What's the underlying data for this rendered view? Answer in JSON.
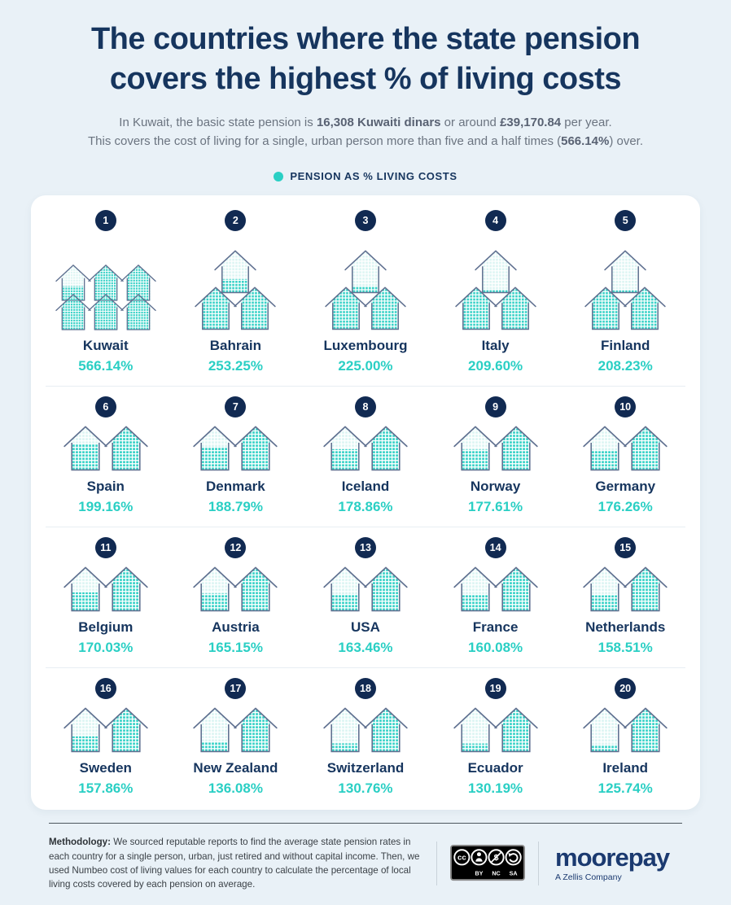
{
  "header": {
    "title_line1": "The countries where the state pension",
    "title_line2": "covers the highest % of living costs",
    "subtitle": {
      "l1a": "In Kuwait, the basic state pension is ",
      "l1b": "16,308 Kuwaiti dinars",
      "l1c": " or around ",
      "l1d": "£39,170.84",
      "l1e": " per year.",
      "l2a": "This covers the cost of living for a single, urban person more than five and a half times (",
      "l2b": "566.14%",
      "l2c": ") over."
    },
    "legend_label": "PENSION AS % LIVING COSTS"
  },
  "countries": [
    {
      "rank": "1",
      "name": "Kuwait",
      "value": "566.14%",
      "pct": 566.14
    },
    {
      "rank": "2",
      "name": "Bahrain",
      "value": "253.25%",
      "pct": 253.25
    },
    {
      "rank": "3",
      "name": "Luxembourg",
      "value": "225.00%",
      "pct": 225.0
    },
    {
      "rank": "4",
      "name": "Italy",
      "value": "209.60%",
      "pct": 209.6
    },
    {
      "rank": "5",
      "name": "Finland",
      "value": "208.23%",
      "pct": 208.23
    },
    {
      "rank": "6",
      "name": "Spain",
      "value": "199.16%",
      "pct": 199.16
    },
    {
      "rank": "7",
      "name": "Denmark",
      "value": "188.79%",
      "pct": 188.79
    },
    {
      "rank": "8",
      "name": "Iceland",
      "value": "178.86%",
      "pct": 178.86
    },
    {
      "rank": "9",
      "name": "Norway",
      "value": "177.61%",
      "pct": 177.61
    },
    {
      "rank": "10",
      "name": "Germany",
      "value": "176.26%",
      "pct": 176.26
    },
    {
      "rank": "11",
      "name": "Belgium",
      "value": "170.03%",
      "pct": 170.03
    },
    {
      "rank": "12",
      "name": "Austria",
      "value": "165.15%",
      "pct": 165.15
    },
    {
      "rank": "13",
      "name": "USA",
      "value": "163.46%",
      "pct": 163.46
    },
    {
      "rank": "14",
      "name": "France",
      "value": "160.08%",
      "pct": 160.08
    },
    {
      "rank": "15",
      "name": "Netherlands",
      "value": "158.51%",
      "pct": 158.51
    },
    {
      "rank": "16",
      "name": "Sweden",
      "value": "157.86%",
      "pct": 157.86
    },
    {
      "rank": "17",
      "name": "New Zealand",
      "value": "136.08%",
      "pct": 136.08
    },
    {
      "rank": "18",
      "name": "Switzerland",
      "value": "130.76%",
      "pct": 130.76
    },
    {
      "rank": "19",
      "name": "Ecuador",
      "value": "130.19%",
      "pct": 130.19
    },
    {
      "rank": "20",
      "name": "Ireland",
      "value": "125.74%",
      "pct": 125.74
    }
  ],
  "footer": {
    "methodology_bold": "Methodology:",
    "methodology_text": " We sourced reputable reports to find the average state pension rates in each country for a single person, urban, just retired and without capital income. Then, we used Numbeo cost of living values for each country to calculate the percentage of local living costs covered by each pension on average.",
    "cc_symbol": "cc",
    "cc_nc_symbol": "$",
    "cc_by": "BY",
    "cc_nc": "NC",
    "cc_sa": "SA",
    "logo_text": "moorepay",
    "logo_subtext": "A Zellis Company"
  },
  "colors": {
    "background": "#e9f1f7",
    "card": "#ffffff",
    "navy": "#16355e",
    "badge_navy": "#112a52",
    "teal": "#2acfc4",
    "pattern_teal": "#38d2c7",
    "pattern_light": "#dcf5f3",
    "house_outline": "#5f7090"
  },
  "chart_data": {
    "type": "bar",
    "subtype": "pictogram-houses",
    "title": "The countries where the state pension covers the highest % of living costs",
    "legend": [
      "Pension as % living costs"
    ],
    "legend_position": "top-center",
    "unit": "%",
    "categories": [
      "Kuwait",
      "Bahrain",
      "Luxembourg",
      "Italy",
      "Finland",
      "Spain",
      "Denmark",
      "Iceland",
      "Norway",
      "Germany",
      "Belgium",
      "Austria",
      "USA",
      "France",
      "Netherlands",
      "Sweden",
      "New Zealand",
      "Switzerland",
      "Ecuador",
      "Ireland"
    ],
    "values": [
      566.14,
      253.25,
      225.0,
      209.6,
      208.23,
      199.16,
      188.79,
      178.86,
      177.61,
      176.26,
      170.03,
      165.15,
      163.46,
      160.08,
      158.51,
      157.86,
      136.08,
      130.76,
      130.19,
      125.74
    ],
    "note": "Each house icon represents 100% of living costs; partial house fill equals fractional remainder. Ranked 1-20 in a 4x5 grid."
  }
}
